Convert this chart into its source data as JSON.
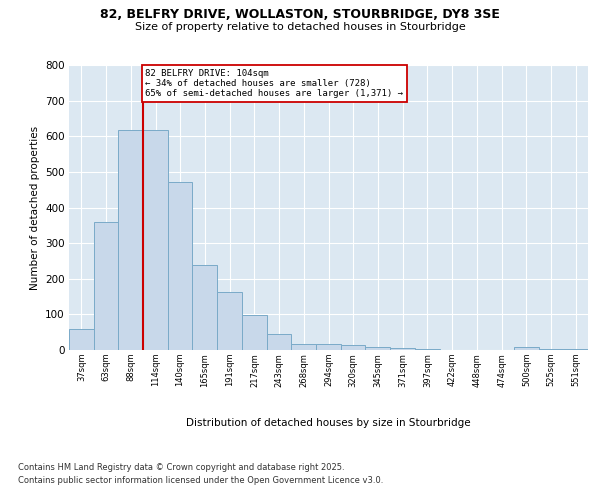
{
  "title1": "82, BELFRY DRIVE, WOLLASTON, STOURBRIDGE, DY8 3SE",
  "title2": "Size of property relative to detached houses in Stourbridge",
  "xlabel": "Distribution of detached houses by size in Stourbridge",
  "ylabel": "Number of detached properties",
  "bar_color": "#c8d8ea",
  "bar_edge_color": "#7aaac8",
  "bg_color": "#dce8f2",
  "annotation_text": "82 BELFRY DRIVE: 104sqm\n← 34% of detached houses are smaller (728)\n65% of semi-detached houses are larger (1,371) →",
  "vline_color": "#cc0000",
  "categories": [
    "37sqm",
    "63sqm",
    "88sqm",
    "114sqm",
    "140sqm",
    "165sqm",
    "191sqm",
    "217sqm",
    "243sqm",
    "268sqm",
    "294sqm",
    "320sqm",
    "345sqm",
    "371sqm",
    "397sqm",
    "422sqm",
    "448sqm",
    "474sqm",
    "500sqm",
    "525sqm",
    "551sqm"
  ],
  "values": [
    58,
    360,
    617,
    617,
    472,
    238,
    162,
    98,
    44,
    18,
    18,
    14,
    8,
    5,
    2,
    1,
    1,
    0,
    8,
    2,
    2
  ],
  "bin_edges": [
    24.5,
    50.5,
    75.5,
    101.5,
    127.5,
    152.5,
    178.5,
    204.5,
    230.5,
    255.5,
    281.5,
    307.5,
    332.5,
    358.5,
    384.5,
    410.5,
    436.5,
    462.5,
    487.5,
    513.5,
    538.5,
    564.5
  ],
  "ylim": [
    0,
    800
  ],
  "yticks": [
    0,
    100,
    200,
    300,
    400,
    500,
    600,
    700,
    800
  ],
  "footnote1": "Contains HM Land Registry data © Crown copyright and database right 2025.",
  "footnote2": "Contains public sector information licensed under the Open Government Licence v3.0."
}
